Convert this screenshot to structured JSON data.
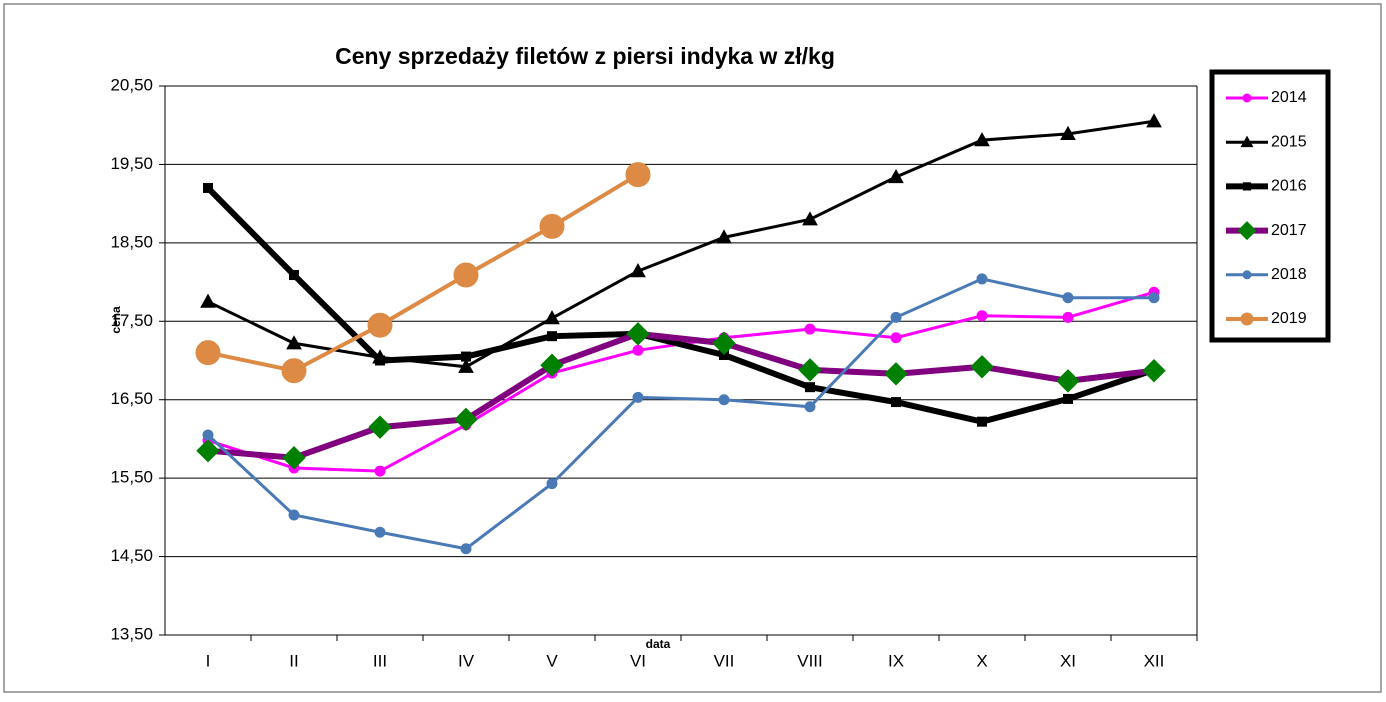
{
  "chart_data": {
    "type": "line",
    "title": "Ceny sprzedaży filetów z  piersi indyka w zł/kg",
    "y_label": "cena",
    "x_label": "data",
    "categories": [
      "I",
      "II",
      "III",
      "IV",
      "V",
      "VI",
      "VII",
      "VIII",
      "IX",
      "X",
      "XI",
      "XII"
    ],
    "ylim": [
      13.5,
      20.5
    ],
    "yticks": [
      {
        "value": 13.5,
        "label": "13,50"
      },
      {
        "value": 14.5,
        "label": "14,50"
      },
      {
        "value": 15.5,
        "label": "15,50"
      },
      {
        "value": 16.5,
        "label": "16,50"
      },
      {
        "value": 17.5,
        "label": "17,50"
      },
      {
        "value": 18.5,
        "label": "18,50"
      },
      {
        "value": 19.5,
        "label": "19,50"
      },
      {
        "value": 20.5,
        "label": "20,50"
      }
    ],
    "grid": true,
    "legend": "right",
    "series": [
      {
        "name": "2014",
        "color": "#ff00ff",
        "marker": "circle",
        "values": [
          15.98,
          15.63,
          15.59,
          16.18,
          16.84,
          17.13,
          17.29,
          17.4,
          17.29,
          17.57,
          17.55,
          17.87
        ]
      },
      {
        "name": "2015",
        "color": "#000000",
        "marker": "triangle",
        "values": [
          17.75,
          17.22,
          17.04,
          16.92,
          17.54,
          18.14,
          18.57,
          18.8,
          19.34,
          19.81,
          19.89,
          20.05
        ]
      },
      {
        "name": "2016",
        "color": "#000000",
        "marker": "square",
        "values": [
          19.2,
          18.09,
          17.0,
          17.05,
          17.31,
          17.34,
          17.07,
          16.66,
          16.47,
          16.22,
          16.51,
          16.88
        ]
      },
      {
        "name": "2017",
        "color": "#800080",
        "marker": "diamond",
        "marker_color": "#008000",
        "values": [
          15.85,
          15.76,
          16.15,
          16.25,
          16.94,
          17.34,
          17.22,
          16.88,
          16.83,
          16.92,
          16.74,
          16.87
        ]
      },
      {
        "name": "2018",
        "color": "#4a7ab5",
        "marker": "circle",
        "values": [
          16.05,
          15.03,
          14.81,
          14.6,
          15.43,
          16.53,
          16.5,
          16.41,
          17.55,
          18.04,
          17.8,
          17.8
        ]
      },
      {
        "name": "2019",
        "color": "#dd8a45",
        "marker": "bigcircle",
        "values": [
          17.1,
          16.87,
          17.45,
          18.09,
          18.71,
          19.37,
          null,
          null,
          null,
          null,
          null,
          null
        ]
      }
    ]
  }
}
